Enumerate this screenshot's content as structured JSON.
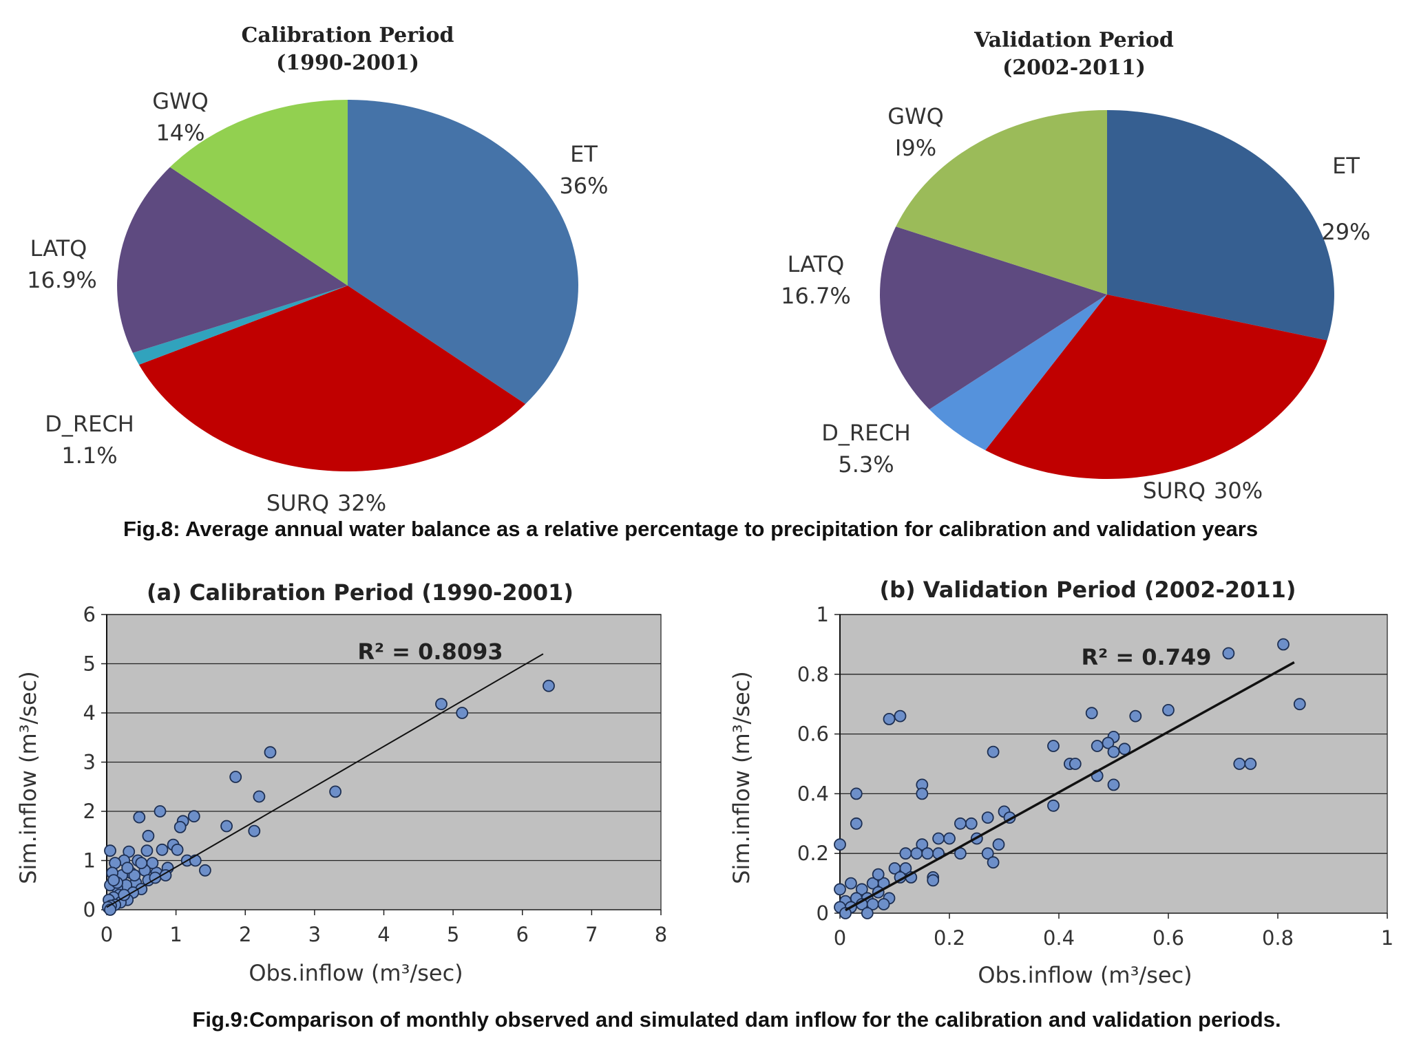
{
  "fig8_caption": "Fig.8: Average annual water balance as a relative percentage to precipitation for calibration and validation years",
  "fig9_caption": "Fig.9:Comparison of monthly observed and simulated dam inflow for the calibration and validation periods.",
  "chart_data": [
    {
      "type": "pie",
      "title": "Calibration Period",
      "subtitle": "(1990-2001)",
      "slices": [
        {
          "name": "ET",
          "pct_label": "36%",
          "value": 36,
          "color": "#4573a8"
        },
        {
          "name": "SURQ",
          "pct_label": "32%",
          "value": 32,
          "color": "#c00000"
        },
        {
          "name": "D_RECH",
          "pct_label": "1.1%",
          "value": 1.1,
          "color": "#31a3bd"
        },
        {
          "name": "LATQ",
          "pct_label": "16.9%",
          "value": 16.9,
          "color": "#5e4a80"
        },
        {
          "name": "GWQ",
          "pct_label": "14%",
          "value": 14,
          "color": "#92d050"
        }
      ]
    },
    {
      "type": "pie",
      "title": "Validation Period",
      "subtitle": "(2002-2011)",
      "slices": [
        {
          "name": "ET",
          "pct_label": "29%",
          "value": 29,
          "color": "#365f91"
        },
        {
          "name": "SURQ",
          "pct_label": "30%",
          "value": 30,
          "color": "#c00000"
        },
        {
          "name": "D_RECH",
          "pct_label": "5.3%",
          "value": 5.3,
          "color": "#5592dc"
        },
        {
          "name": "LATQ",
          "pct_label": "16.7%",
          "value": 16.7,
          "color": "#5e4a80"
        },
        {
          "name": "GWQ",
          "pct_label": "I9%",
          "value": 19,
          "color": "#9bbb59"
        }
      ]
    },
    {
      "type": "scatter",
      "title": "(a) Calibration Period (1990-2001)",
      "xlabel": "Obs.inflow (m³/sec)",
      "ylabel": "Sim.inflow (m³/sec)",
      "xlim": [
        0,
        8
      ],
      "ylim": [
        0,
        6
      ],
      "xticks": [
        "0",
        "1",
        "2",
        "3",
        "4",
        "5",
        "6",
        "7",
        "8"
      ],
      "yticks": [
        "0",
        "1",
        "2",
        "3",
        "4",
        "5",
        "6"
      ],
      "annotation": "R² = 0.8093",
      "trendline": [
        [
          0,
          0.05
        ],
        [
          6.3,
          5.2
        ]
      ],
      "grid": "horizontal",
      "points": [
        [
          6.38,
          4.55
        ],
        [
          4.83,
          4.18
        ],
        [
          5.13,
          4.0
        ],
        [
          3.3,
          2.4
        ],
        [
          2.36,
          3.2
        ],
        [
          1.86,
          2.7
        ],
        [
          2.2,
          2.3
        ],
        [
          1.73,
          1.7
        ],
        [
          2.13,
          1.6
        ],
        [
          0.77,
          2.0
        ],
        [
          0.47,
          1.88
        ],
        [
          1.26,
          1.9
        ],
        [
          1.1,
          1.8
        ],
        [
          1.06,
          1.68
        ],
        [
          0.6,
          1.5
        ],
        [
          0.96,
          1.32
        ],
        [
          0.8,
          1.22
        ],
        [
          1.02,
          1.22
        ],
        [
          0.58,
          1.2
        ],
        [
          0.32,
          1.18
        ],
        [
          0.05,
          1.2
        ],
        [
          1.16,
          1.0
        ],
        [
          1.28,
          1.0
        ],
        [
          1.42,
          0.8
        ],
        [
          0.88,
          0.85
        ],
        [
          0.72,
          0.75
        ],
        [
          0.66,
          0.95
        ],
        [
          0.45,
          1.0
        ],
        [
          0.25,
          1.0
        ],
        [
          0.12,
          0.95
        ],
        [
          0.55,
          0.8
        ],
        [
          0.35,
          0.75
        ],
        [
          0.22,
          0.7
        ],
        [
          0.08,
          0.75
        ],
        [
          0.6,
          0.6
        ],
        [
          0.42,
          0.55
        ],
        [
          0.28,
          0.5
        ],
        [
          0.15,
          0.45
        ],
        [
          0.05,
          0.5
        ],
        [
          0.5,
          0.42
        ],
        [
          0.38,
          0.35
        ],
        [
          0.18,
          0.3
        ],
        [
          0.1,
          0.25
        ],
        [
          0.03,
          0.2
        ],
        [
          0.3,
          0.2
        ],
        [
          0.2,
          0.15
        ],
        [
          0.12,
          0.1
        ],
        [
          0.06,
          0.08
        ],
        [
          0.02,
          0.05
        ],
        [
          0.15,
          0.55
        ],
        [
          0.4,
          0.7
        ],
        [
          0.7,
          0.65
        ],
        [
          0.25,
          0.3
        ],
        [
          0.05,
          0.0
        ],
        [
          0.1,
          0.6
        ],
        [
          0.3,
          0.85
        ],
        [
          0.5,
          0.95
        ],
        [
          0.85,
          0.7
        ]
      ]
    },
    {
      "type": "scatter",
      "title": "(b) Validation Period (2002-2011)",
      "xlabel": "Obs.inflow (m³/sec)",
      "ylabel": "Sim.inflow (m³/sec)",
      "xlim": [
        0,
        1
      ],
      "ylim": [
        0,
        1
      ],
      "xticks": [
        "0",
        "0.2",
        "0.4",
        "0.6",
        "0.8",
        "1"
      ],
      "yticks": [
        "0",
        "0.2",
        "0.4",
        "0.6",
        "0.8",
        "1"
      ],
      "annotation": "R² = 0.749",
      "trendline": [
        [
          0.01,
          0.01
        ],
        [
          0.83,
          0.84
        ]
      ],
      "grid": "horizontal",
      "points": [
        [
          0.81,
          0.9
        ],
        [
          0.71,
          0.87
        ],
        [
          0.84,
          0.7
        ],
        [
          0.73,
          0.5
        ],
        [
          0.75,
          0.5
        ],
        [
          0.6,
          0.68
        ],
        [
          0.54,
          0.66
        ],
        [
          0.46,
          0.67
        ],
        [
          0.5,
          0.59
        ],
        [
          0.49,
          0.57
        ],
        [
          0.47,
          0.56
        ],
        [
          0.52,
          0.55
        ],
        [
          0.5,
          0.54
        ],
        [
          0.42,
          0.5
        ],
        [
          0.43,
          0.5
        ],
        [
          0.47,
          0.46
        ],
        [
          0.5,
          0.43
        ],
        [
          0.39,
          0.56
        ],
        [
          0.28,
          0.54
        ],
        [
          0.39,
          0.36
        ],
        [
          0.09,
          0.65
        ],
        [
          0.11,
          0.66
        ],
        [
          0.15,
          0.43
        ],
        [
          0.15,
          0.4
        ],
        [
          0.03,
          0.4
        ],
        [
          0.03,
          0.3
        ],
        [
          0.0,
          0.23
        ],
        [
          0.3,
          0.34
        ],
        [
          0.31,
          0.32
        ],
        [
          0.27,
          0.32
        ],
        [
          0.24,
          0.3
        ],
        [
          0.22,
          0.3
        ],
        [
          0.2,
          0.25
        ],
        [
          0.18,
          0.25
        ],
        [
          0.15,
          0.23
        ],
        [
          0.14,
          0.2
        ],
        [
          0.12,
          0.2
        ],
        [
          0.29,
          0.23
        ],
        [
          0.25,
          0.25
        ],
        [
          0.27,
          0.2
        ],
        [
          0.22,
          0.2
        ],
        [
          0.18,
          0.2
        ],
        [
          0.16,
          0.2
        ],
        [
          0.12,
          0.15
        ],
        [
          0.1,
          0.15
        ],
        [
          0.28,
          0.17
        ],
        [
          0.17,
          0.12
        ],
        [
          0.13,
          0.12
        ],
        [
          0.11,
          0.12
        ],
        [
          0.08,
          0.1
        ],
        [
          0.06,
          0.1
        ],
        [
          0.04,
          0.08
        ],
        [
          0.02,
          0.1
        ],
        [
          0.0,
          0.08
        ],
        [
          0.09,
          0.05
        ],
        [
          0.07,
          0.07
        ],
        [
          0.05,
          0.05
        ],
        [
          0.03,
          0.05
        ],
        [
          0.01,
          0.04
        ],
        [
          0.0,
          0.02
        ],
        [
          0.02,
          0.02
        ],
        [
          0.04,
          0.03
        ],
        [
          0.06,
          0.03
        ],
        [
          0.08,
          0.03
        ],
        [
          0.17,
          0.11
        ],
        [
          0.07,
          0.13
        ],
        [
          0.05,
          0.0
        ],
        [
          0.01,
          0.0
        ]
      ]
    }
  ]
}
